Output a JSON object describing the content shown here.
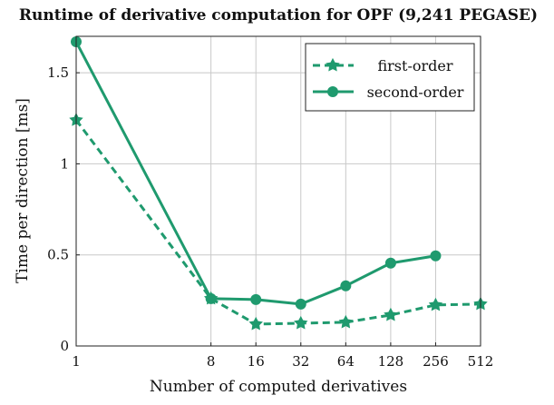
{
  "chart_data": {
    "type": "line",
    "title": "Runtime of derivative computation for OPF (9,241 PEGASE)",
    "xlabel": "Number of computed derivatives",
    "ylabel": "Time per direction [ms]",
    "x_scale": "log2",
    "xlim": [
      1,
      512
    ],
    "ylim": [
      0,
      1.7
    ],
    "x_ticks": [
      "1",
      "8",
      "16",
      "32",
      "64",
      "128",
      "256",
      "512"
    ],
    "x_tick_values": [
      1,
      8,
      16,
      32,
      64,
      128,
      256,
      512
    ],
    "y_ticks": [
      "0",
      "0.5",
      "1",
      "1.5"
    ],
    "y_tick_values": [
      0,
      0.5,
      1,
      1.5
    ],
    "grid": true,
    "legend_position": "top-right",
    "colors": {
      "series": "#1f9a6e"
    },
    "series": [
      {
        "name": "first-order",
        "style": "dashed",
        "x": [
          1,
          8,
          16,
          32,
          64,
          128,
          256,
          512
        ],
        "values": [
          1.24,
          0.26,
          0.12,
          0.125,
          0.13,
          0.17,
          0.225,
          0.23
        ]
      },
      {
        "name": "second-order",
        "style": "solid",
        "x": [
          1,
          8,
          16,
          32,
          64,
          128,
          256
        ],
        "values": [
          1.67,
          0.26,
          0.255,
          0.23,
          0.33,
          0.455,
          0.495
        ]
      }
    ]
  }
}
